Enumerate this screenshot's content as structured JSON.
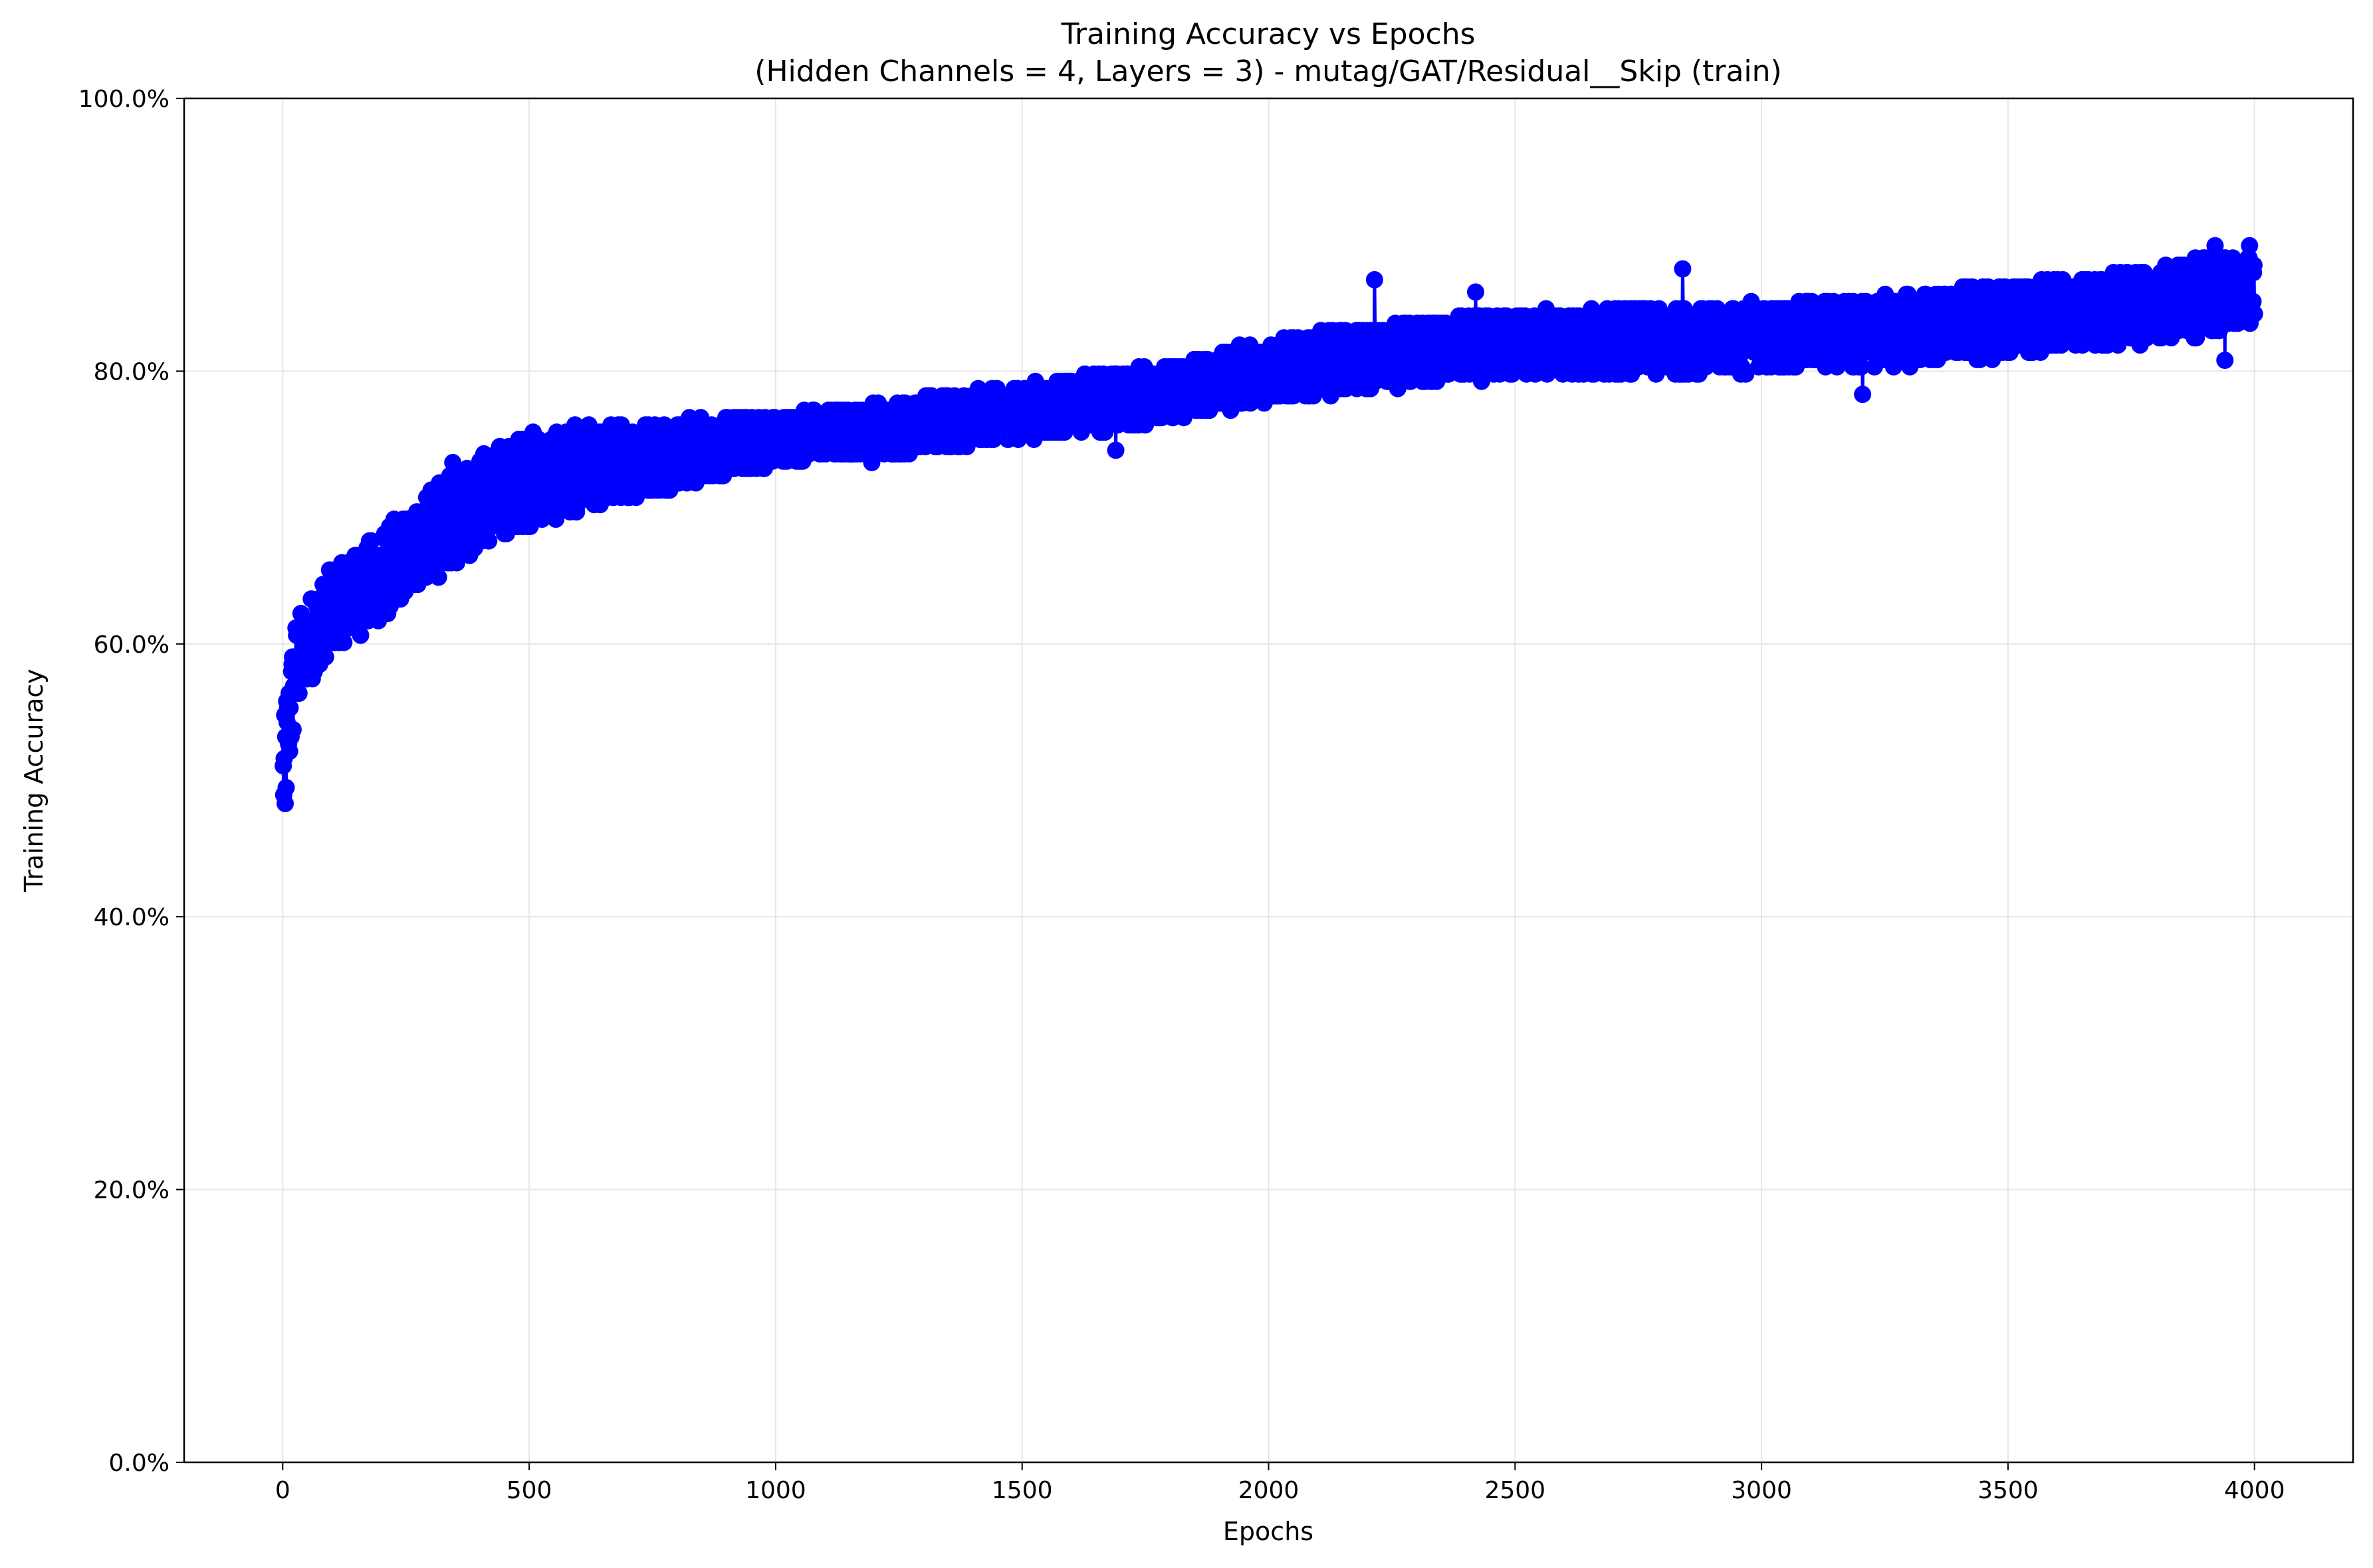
{
  "chart_data": {
    "type": "line",
    "title": "Training Accuracy vs Epochs",
    "subtitle": "(Hidden Channels = 4, Layers = 3) - mutag/GAT/Residual__Skip (train)",
    "xlabel": "Epochs",
    "ylabel": "Training Accuracy",
    "xlim": [
      -200,
      4200
    ],
    "ylim": [
      0,
      1
    ],
    "xticks": [
      0,
      500,
      1000,
      1500,
      2000,
      2500,
      3000,
      3500,
      4000
    ],
    "xtick_labels": [
      "0",
      "500",
      "1000",
      "1500",
      "2000",
      "2500",
      "3000",
      "3500",
      "4000"
    ],
    "yticks": [
      0,
      0.2,
      0.4,
      0.6,
      0.8,
      1.0
    ],
    "ytick_labels": [
      "0.0%",
      "20.0%",
      "40.0%",
      "60.0%",
      "80.0%",
      "100.0%"
    ],
    "grid": true,
    "legend": "none",
    "series_color": "#0000ff",
    "marker": "circle",
    "epochs": [
      1,
      4000
    ],
    "trend": [
      {
        "x": 1,
        "y": 0.5
      },
      {
        "x": 10,
        "y": 0.53
      },
      {
        "x": 25,
        "y": 0.58
      },
      {
        "x": 50,
        "y": 0.6
      },
      {
        "x": 100,
        "y": 0.625
      },
      {
        "x": 200,
        "y": 0.65
      },
      {
        "x": 300,
        "y": 0.68
      },
      {
        "x": 400,
        "y": 0.705
      },
      {
        "x": 500,
        "y": 0.72
      },
      {
        "x": 700,
        "y": 0.735
      },
      {
        "x": 1000,
        "y": 0.75
      },
      {
        "x": 1200,
        "y": 0.757
      },
      {
        "x": 1500,
        "y": 0.77
      },
      {
        "x": 1800,
        "y": 0.785
      },
      {
        "x": 2000,
        "y": 0.8
      },
      {
        "x": 2200,
        "y": 0.81
      },
      {
        "x": 2500,
        "y": 0.82
      },
      {
        "x": 2800,
        "y": 0.822
      },
      {
        "x": 3000,
        "y": 0.825
      },
      {
        "x": 3300,
        "y": 0.83
      },
      {
        "x": 3500,
        "y": 0.838
      },
      {
        "x": 3700,
        "y": 0.845
      },
      {
        "x": 3900,
        "y": 0.855
      },
      {
        "x": 4000,
        "y": 0.862
      }
    ],
    "spread": [
      {
        "x": 1,
        "y": 0.04
      },
      {
        "x": 50,
        "y": 0.03
      },
      {
        "x": 500,
        "y": 0.035
      },
      {
        "x": 1000,
        "y": 0.018
      },
      {
        "x": 1500,
        "y": 0.02
      },
      {
        "x": 2000,
        "y": 0.022
      },
      {
        "x": 3000,
        "y": 0.025
      },
      {
        "x": 4000,
        "y": 0.028
      }
    ],
    "extremes": [
      {
        "x": 5,
        "y": 0.483
      },
      {
        "x": 8,
        "y": 0.558
      },
      {
        "x": 345,
        "y": 0.733
      },
      {
        "x": 1195,
        "y": 0.733
      },
      {
        "x": 1690,
        "y": 0.742
      },
      {
        "x": 2215,
        "y": 0.867
      },
      {
        "x": 2420,
        "y": 0.858
      },
      {
        "x": 2840,
        "y": 0.875
      },
      {
        "x": 3205,
        "y": 0.783
      },
      {
        "x": 3920,
        "y": 0.892
      },
      {
        "x": 3940,
        "y": 0.808
      },
      {
        "x": 3990,
        "y": 0.892
      },
      {
        "x": 4000,
        "y": 0.842
      }
    ]
  }
}
